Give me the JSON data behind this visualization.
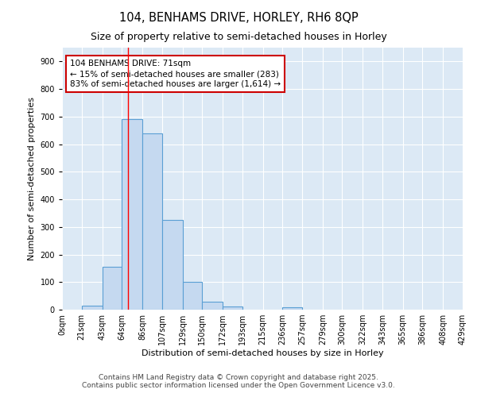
{
  "title": "104, BENHAMS DRIVE, HORLEY, RH6 8QP",
  "subtitle": "Size of property relative to semi-detached houses in Horley",
  "xlabel": "Distribution of semi-detached houses by size in Horley",
  "ylabel": "Number of semi-detached properties",
  "bin_edges": [
    0,
    21,
    43,
    64,
    86,
    107,
    129,
    150,
    172,
    193,
    215,
    236,
    257,
    279,
    300,
    322,
    343,
    365,
    386,
    408,
    429
  ],
  "bar_heights": [
    0,
    15,
    155,
    690,
    640,
    325,
    100,
    30,
    12,
    0,
    0,
    8,
    0,
    0,
    0,
    0,
    0,
    0,
    0,
    0
  ],
  "bar_color": "#c5d9f0",
  "bar_edge_color": "#5a9fd4",
  "bar_edge_width": 0.8,
  "red_line_x": 71,
  "annotation_line1": "104 BENHAMS DRIVE: 71sqm",
  "annotation_line2": "← 15% of semi-detached houses are smaller (283)",
  "annotation_line3": "83% of semi-detached houses are larger (1,614) →",
  "annotation_box_color": "#ffffff",
  "annotation_box_edge_color": "#cc0000",
  "ylim": [
    0,
    950
  ],
  "yticks": [
    0,
    100,
    200,
    300,
    400,
    500,
    600,
    700,
    800,
    900
  ],
  "xlim_max": 429,
  "bg_color": "#ffffff",
  "plot_bg_color": "#dce9f5",
  "grid_color": "#ffffff",
  "footer_line1": "Contains HM Land Registry data © Crown copyright and database right 2025.",
  "footer_line2": "Contains public sector information licensed under the Open Government Licence v3.0.",
  "title_fontsize": 10.5,
  "subtitle_fontsize": 9,
  "axis_label_fontsize": 8,
  "tick_fontsize": 7,
  "annotation_fontsize": 7.5,
  "footer_fontsize": 6.5
}
